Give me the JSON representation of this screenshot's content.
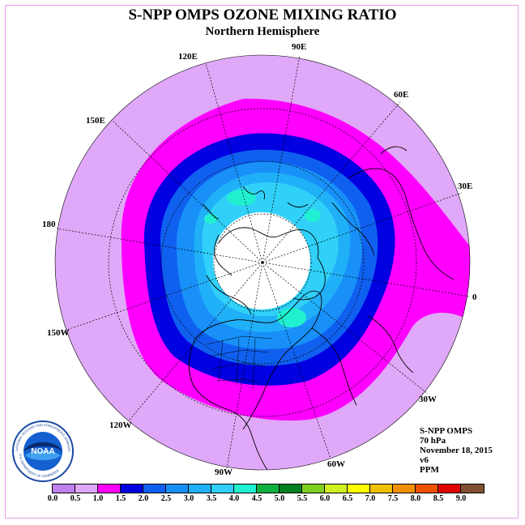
{
  "title": "S-NPP OMPS OZONE MIXING RATIO",
  "subtitle": "Northern Hemisphere",
  "longitude_labels": {
    "e90": "90E",
    "e60": "60E",
    "e30": "30E",
    "zero": "0",
    "w30": "30W",
    "w60": "60W",
    "w90": "90W",
    "w120": "120W",
    "w150": "150W",
    "d180": "180",
    "e150": "150E",
    "e120": "120E"
  },
  "info": {
    "instrument": "S-NPP OMPS",
    "level": "70 hPa",
    "date": "November 18, 2015",
    "version": "v6",
    "units": "PPM"
  },
  "logo": {
    "text": "NOAA",
    "ring_text": "NATIONAL OCEANIC AND ATMOSPHERIC ADMINISTRATION",
    "ring_text_bottom": "U.S. DEPARTMENT OF COMMERCE"
  },
  "colorbar": {
    "colors": [
      "#c080f0",
      "#e0a8f8",
      "#ff00ff",
      "#0000e0",
      "#1060f0",
      "#1890f8",
      "#20b0f8",
      "#30d0f8",
      "#20f0d0",
      "#10b040",
      "#008020",
      "#80d020",
      "#d0f020",
      "#ffff00",
      "#f0c000",
      "#f09000",
      "#f05000",
      "#e00000",
      "#805030"
    ],
    "ticks": [
      "0.0",
      "0.5",
      "1.0",
      "1.5",
      "2.0",
      "2.5",
      "3.0",
      "3.5",
      "4.0",
      "4.5",
      "5.0",
      "5.5",
      "6.0",
      "6.5",
      "7.0",
      "7.5",
      "8.0",
      "8.5",
      "9.0"
    ]
  }
}
